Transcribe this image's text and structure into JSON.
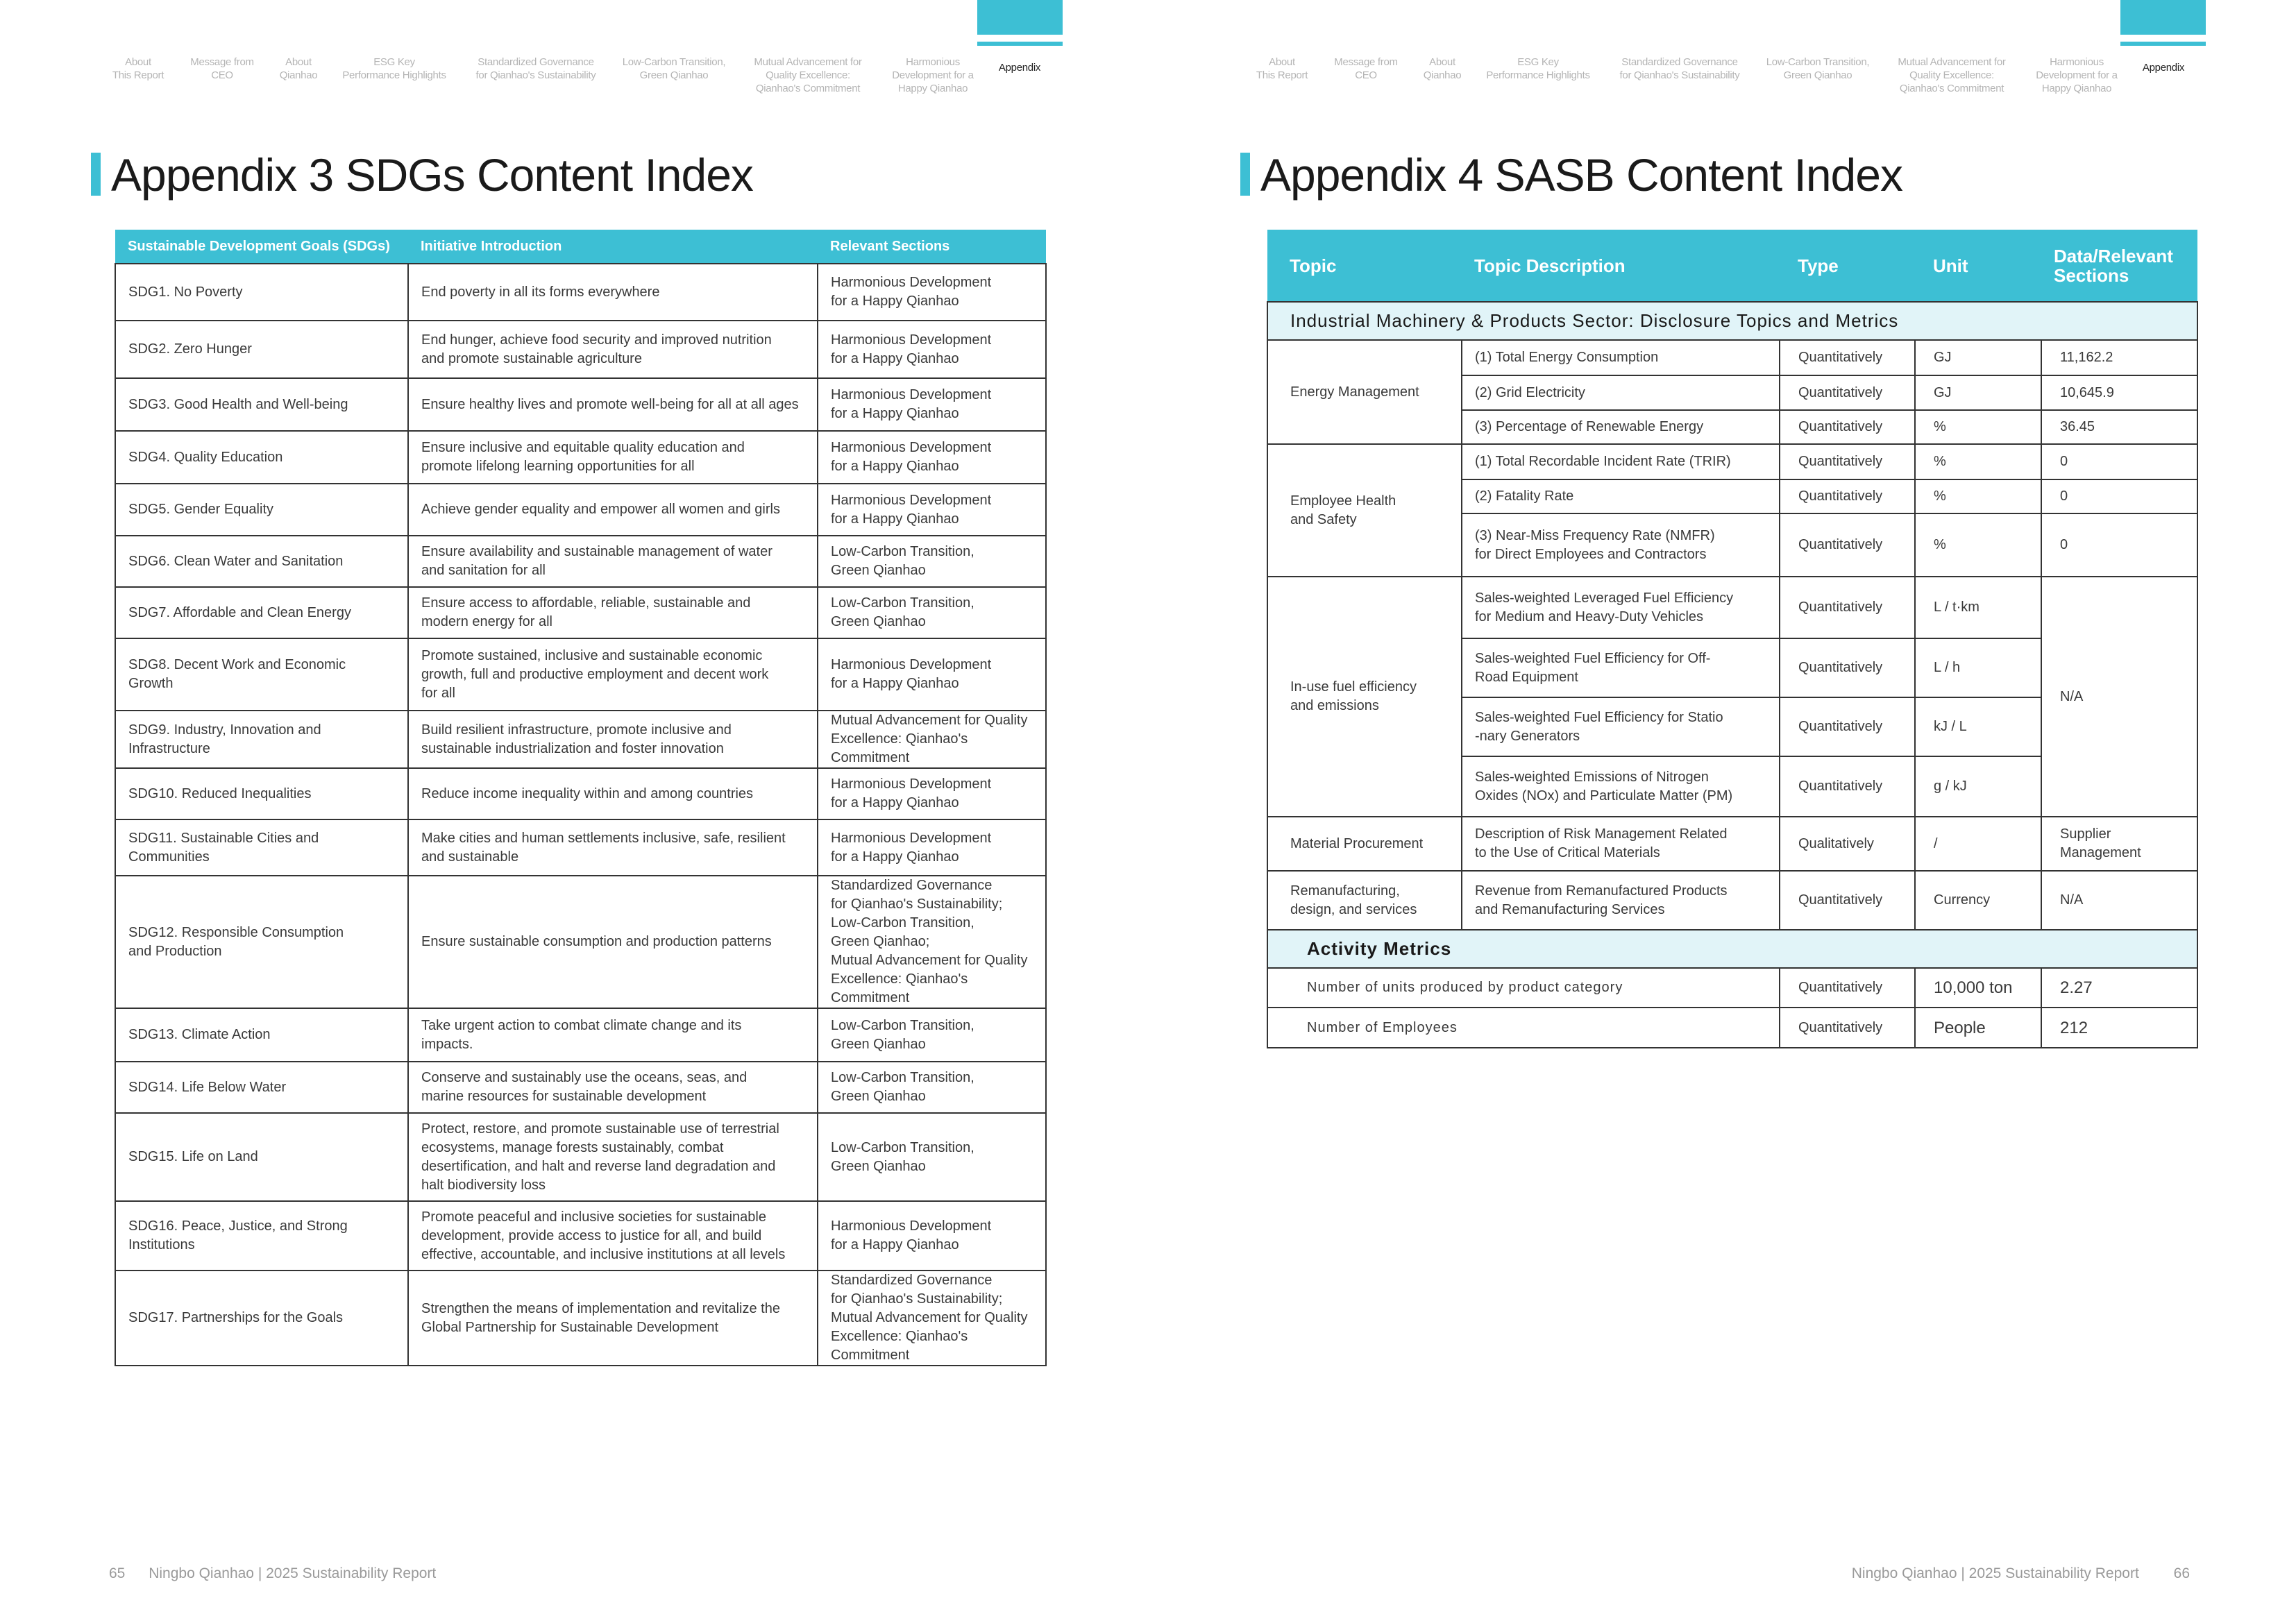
{
  "nav": {
    "items": [
      "About\nThis Report",
      "Message from\nCEO",
      "About\nQianhao",
      "ESG Key\nPerformance Highlights",
      "Standardized Governance\nfor Qianhao's Sustainability",
      "Low-Carbon Transition,\nGreen Qianhao",
      "Mutual Advancement for\nQuality Excellence:\nQianhao's Commitment",
      "Harmonious\nDevelopment for a\nHappy Qianhao",
      "Appendix"
    ],
    "active": "Appendix"
  },
  "colors": {
    "accent": "#3dbfd4",
    "subheader": "#e1f4f8"
  },
  "left_page": {
    "title": "Appendix 3 SDGs Content Index",
    "page_number": "65",
    "footer": "Ningbo Qianhao | 2025 Sustainability Report",
    "table": {
      "headers": [
        "Sustainable Development Goals (SDGs)",
        "Initiative Introduction",
        "Relevant Sections"
      ],
      "rows": [
        [
          "SDG1. No Poverty",
          "End poverty in all its forms everywhere",
          "Harmonious Development\nfor a Happy Qianhao"
        ],
        [
          "SDG2. Zero Hunger",
          "End hunger, achieve food security and improved nutrition\nand promote sustainable agriculture",
          "Harmonious Development\nfor a Happy Qianhao"
        ],
        [
          "SDG3. Good Health and Well-being",
          "Ensure healthy lives and promote well-being for all at all ages",
          "Harmonious Development\nfor a Happy Qianhao"
        ],
        [
          "SDG4. Quality Education",
          "Ensure inclusive and equitable quality education and\npromote lifelong learning opportunities for all",
          "Harmonious Development\nfor a Happy Qianhao"
        ],
        [
          "SDG5. Gender Equality",
          "Achieve gender equality and empower all women and girls",
          "Harmonious Development\nfor a Happy Qianhao"
        ],
        [
          "SDG6. Clean Water and Sanitation",
          "Ensure availability and sustainable management of water\nand sanitation for all",
          "Low-Carbon Transition,\nGreen Qianhao"
        ],
        [
          "SDG7. Affordable and Clean Energy",
          "Ensure access to affordable, reliable, sustainable and\nmodern energy for all",
          "Low-Carbon Transition,\nGreen Qianhao"
        ],
        [
          "SDG8. Decent Work  and Economic\nGrowth",
          "Promote sustained, inclusive and sustainable economic\ngrowth, full and productive employment and decent work\nfor all",
          "Harmonious Development\nfor a Happy Qianhao"
        ],
        [
          "SDG9. Industry, Innovation and\nInfrastructure",
          "Build resilient infrastructure, promote inclusive and\nsustainable industrialization and foster innovation",
          "Mutual Advancement for Quality\nExcellence: Qianhao's Commitment"
        ],
        [
          "SDG10. Reduced Inequalities",
          "Reduce income inequality within and among countries",
          "Harmonious Development\nfor a Happy Qianhao"
        ],
        [
          "SDG11. Sustainable Cities and\nCommunities",
          "Make cities and human settlements inclusive, safe, resilient\nand sustainable",
          "Harmonious Development\nfor a Happy Qianhao"
        ],
        [
          "SDG12. Responsible Consumption\nand Production",
          "Ensure sustainable consumption and production patterns",
          "Standardized Governance\nfor Qianhao's Sustainability;\nLow-Carbon Transition,\nGreen Qianhao;\nMutual Advancement for Quality\nExcellence: Qianhao's Commitment"
        ],
        [
          "SDG13. Climate Action",
          "Take urgent action to combat climate change and its\nimpacts.",
          "Low-Carbon Transition,\nGreen Qianhao"
        ],
        [
          "SDG14. Life Below Water",
          "Conserve and sustainably use the oceans, seas, and\nmarine resources for sustainable development",
          "Low-Carbon Transition,\nGreen Qianhao"
        ],
        [
          "SDG15. Life on Land",
          "Protect, restore, and promote sustainable use of terrestrial\necosystems, manage forests sustainably, combat\ndesertification, and halt and reverse land degradation and\nhalt biodiversity loss",
          "Low-Carbon Transition,\nGreen Qianhao"
        ],
        [
          "SDG16. Peace, Justice, and Strong\nInstitutions",
          "Promote peaceful and inclusive societies for sustainable\ndevelopment, provide access to justice for all, and build\neffective, accountable, and inclusive institutions at all levels",
          "Harmonious Development\nfor a Happy Qianhao"
        ],
        [
          "SDG17. Partnerships for the Goals",
          "Strengthen the means of implementation and revitalize the\nGlobal Partnership for Sustainable Development",
          "Standardized Governance\nfor Qianhao's Sustainability;\nMutual Advancement for Quality\nExcellence: Qianhao's Commitment"
        ]
      ]
    }
  },
  "right_page": {
    "title": "Appendix 4 SASB Content Index",
    "page_number": "66",
    "footer": "Ningbo Qianhao | 2025 Sustainability Report",
    "table": {
      "headers": [
        "Topic",
        "Topic Description",
        "Type",
        "Unit",
        "Data/Relevant\nSections"
      ],
      "section_title": "Industrial Machinery & Products Sector: Disclosure Topics and Metrics",
      "topics": [
        {
          "name": "Energy Management",
          "metrics": [
            {
              "description": "(1)  Total Energy Consumption",
              "type": "Quantitatively",
              "unit": "GJ",
              "data": "11,162.2"
            },
            {
              "description": "(2)  Grid Electricity",
              "type": "Quantitatively",
              "unit": "GJ",
              "data": "10,645.9"
            },
            {
              "description": "(3)  Percentage of Renewable Energy",
              "type": "Quantitatively",
              "unit": "%",
              "data": "36.45"
            }
          ]
        },
        {
          "name": "Employee Health\nand Safety",
          "metrics": [
            {
              "description": "(1)  Total Recordable Incident Rate (TRIR)",
              "type": "Quantitatively",
              "unit": "%",
              "data": "0"
            },
            {
              "description": "(2)  Fatality Rate",
              "type": "Quantitatively",
              "unit": "%",
              "data": "0"
            },
            {
              "description": "(3)  Near-Miss Frequency Rate (NMFR)\n      for Direct Employees and Contractors",
              "type": "Quantitatively",
              "unit": "%",
              "data": "0"
            }
          ]
        },
        {
          "name": "In-use fuel efficiency\nand emissions",
          "data": "N/A",
          "metrics": [
            {
              "description": "Sales-weighted Leveraged Fuel Efficiency\nfor Medium and Heavy-Duty Vehicles",
              "type": "Quantitatively",
              "unit": "L / t·km"
            },
            {
              "description": "Sales-weighted Fuel Efficiency for Off-\nRoad Equipment",
              "type": "Quantitatively",
              "unit": "L / h"
            },
            {
              "description": "Sales-weighted Fuel Efficiency for Statio\n-nary Generators",
              "type": "Quantitatively",
              "unit": "kJ / L"
            },
            {
              "description": "Sales-weighted Emissions of Nitrogen\nOxides (NOx) and Particulate Matter (PM)",
              "type": "Quantitatively",
              "unit": "g / kJ"
            }
          ]
        },
        {
          "name": "Material Procurement",
          "metrics": [
            {
              "description": "Description of Risk Management Related\nto the Use of Critical Materials",
              "type": "Qualitatively",
              "unit": "/",
              "data": "Supplier\nManagement"
            }
          ]
        },
        {
          "name": "Remanufacturing,\ndesign, and services",
          "metrics": [
            {
              "description": "Revenue from Remanufactured Products\nand Remanufacturing Services",
              "type": "Quantitatively",
              "unit": "Currency",
              "data": "N/A"
            }
          ]
        }
      ],
      "activity_title": "Activity Metrics",
      "activity": [
        {
          "description": "Number of units produced by product category",
          "type": "Quantitatively",
          "unit": "10,000 ton",
          "data": "2.27"
        },
        {
          "description": "Number of Employees",
          "type": "Quantitatively",
          "unit": "People",
          "data": "212"
        }
      ]
    }
  }
}
